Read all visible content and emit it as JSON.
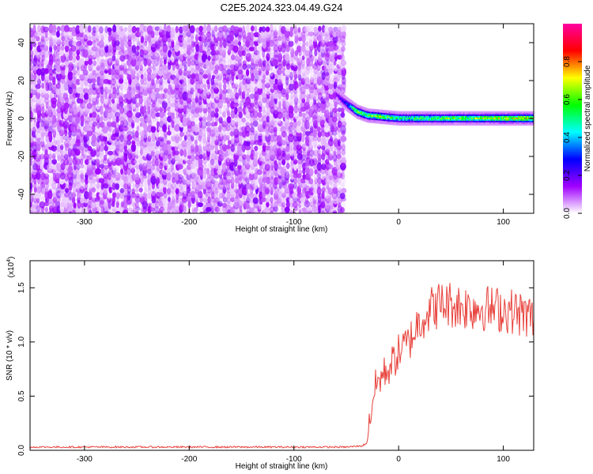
{
  "title": "C2E5.2024.323.04.49.G24",
  "chart_data": [
    {
      "type": "heatmap",
      "title": "C2E5.2024.323.04.49.G24",
      "xlabel": "Height of straight line (km)",
      "ylabel": "Frequency (Hz)",
      "xlim": [
        -352,
        129
      ],
      "ylim": [
        -50,
        50
      ],
      "xticks": [
        -300,
        -200,
        -100,
        0,
        100
      ],
      "xtick_labels": [
        "-300",
        "-200",
        "-100",
        "0",
        "100"
      ],
      "yticks": [
        -40,
        -20,
        0,
        20,
        40
      ],
      "ytick_labels": [
        "-40",
        "-20",
        "0",
        "20",
        "40"
      ],
      "colorbar": {
        "label": "Normalized spectral amplitude",
        "range": [
          0,
          1
        ],
        "ticks": [
          0.0,
          0.2,
          0.4,
          0.6,
          0.8
        ],
        "tick_labels": [
          "0.0",
          "0.2",
          "0.4",
          "0.6",
          "0.8"
        ],
        "colormap": [
          "#ffffff",
          "#a000ff",
          "#0000ff",
          "#00ffff",
          "#00ff00",
          "#ffff00",
          "#ff0000",
          "#ff00a0"
        ]
      },
      "noise_region": {
        "x": [
          -352,
          -50
        ],
        "freq": [
          -50,
          50
        ],
        "typical_amplitude": 0.12
      },
      "signal_track": {
        "x": [
          -60,
          -50,
          -45,
          -40,
          -35,
          -30,
          -20,
          -10,
          0,
          20,
          40,
          60,
          80,
          100,
          129
        ],
        "freq": [
          13,
          8,
          6,
          4,
          3,
          2,
          1.5,
          1,
          0.5,
          0.5,
          0.5,
          0.5,
          0.5,
          0.5,
          0.5
        ],
        "amplitude": [
          0.15,
          0.3,
          0.5,
          0.6,
          0.6,
          0.55,
          0.6,
          0.55,
          0.5,
          0.55,
          0.55,
          0.6,
          0.6,
          0.65,
          0.7
        ]
      },
      "grid": false
    },
    {
      "type": "line",
      "xlabel": "Height of straight line (km)",
      "ylabel": "SNR (10 * v/v)",
      "y_multiplier": "(x10",
      "y_multiplier_exp": "4",
      "y_multiplier_close": ")",
      "xlim": [
        -352,
        129
      ],
      "ylim": [
        0,
        1.75
      ],
      "xticks": [
        -300,
        -200,
        -100,
        0,
        100
      ],
      "xtick_labels": [
        "-300",
        "-200",
        "-100",
        "0",
        "100"
      ],
      "yticks": [
        0,
        0.5,
        1.0,
        1.5
      ],
      "ytick_labels": [
        "0.0",
        "0.5",
        "1.0",
        "1.5"
      ],
      "line_color": "#e8403a",
      "series": [
        {
          "x": [
            -352,
            -300,
            -200,
            -100,
            -50,
            -35,
            -30,
            -28,
            -25,
            -22,
            -20,
            -15,
            -10,
            -5,
            0,
            5,
            10,
            15,
            20,
            25,
            30,
            40,
            50,
            60,
            70,
            80,
            90,
            100,
            110,
            120,
            129
          ],
          "values": [
            0.03,
            0.03,
            0.03,
            0.03,
            0.03,
            0.04,
            0.07,
            0.25,
            0.45,
            0.6,
            0.62,
            0.7,
            0.75,
            0.82,
            0.9,
            0.95,
            1.0,
            1.1,
            1.2,
            1.25,
            1.3,
            1.35,
            1.35,
            1.33,
            1.32,
            1.32,
            1.3,
            1.3,
            1.28,
            1.25,
            1.22
          ]
        }
      ],
      "grid": false
    }
  ]
}
